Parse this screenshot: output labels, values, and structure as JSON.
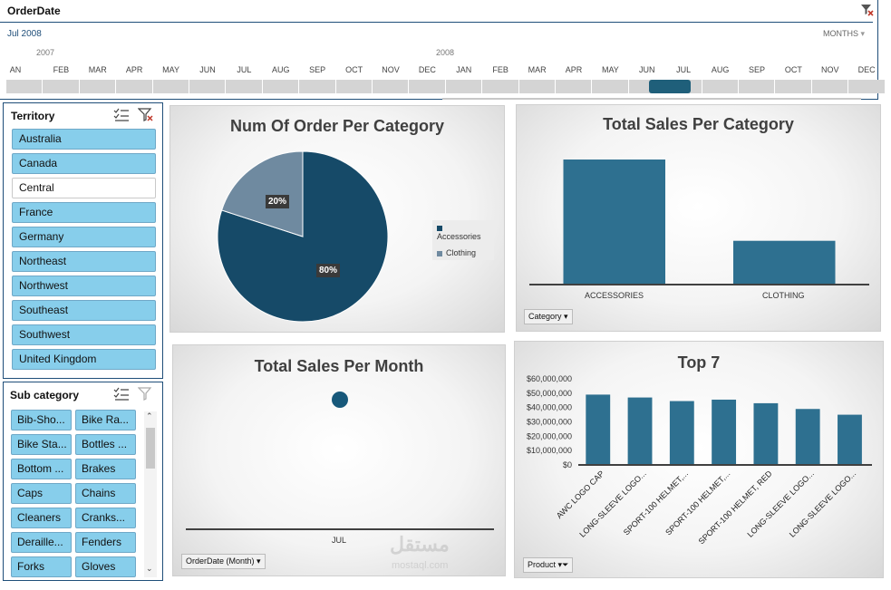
{
  "colors": {
    "accent_dark": "#1a4a68",
    "accent_mid": "#2e6f8f",
    "bar": "#2e7090",
    "slicer_selected": "#87ceeb",
    "pie_clothing": "#6f8aa0",
    "pie_accessories": "#164a68"
  },
  "timeline": {
    "title": "OrderDate",
    "range": "Jul 2008",
    "level": "MONTHS",
    "years": [
      "2007",
      "2008"
    ],
    "months": [
      "AN",
      "FEB",
      "MAR",
      "APR",
      "MAY",
      "JUN",
      "JUL",
      "AUG",
      "SEP",
      "OCT",
      "NOV",
      "DEC",
      "JAN",
      "FEB",
      "MAR",
      "APR",
      "MAY",
      "JUN",
      "JUL",
      "AUG",
      "SEP",
      "OCT",
      "NOV",
      "DEC"
    ],
    "selected_index": 18
  },
  "territory": {
    "title": "Territory",
    "items": [
      {
        "label": "Australia",
        "selected": true
      },
      {
        "label": "Canada",
        "selected": true
      },
      {
        "label": "Central",
        "selected": false
      },
      {
        "label": "France",
        "selected": true
      },
      {
        "label": "Germany",
        "selected": true
      },
      {
        "label": "Northeast",
        "selected": true
      },
      {
        "label": "Northwest",
        "selected": true
      },
      {
        "label": "Southeast",
        "selected": true
      },
      {
        "label": "Southwest",
        "selected": true
      },
      {
        "label": "United Kingdom",
        "selected": true
      }
    ]
  },
  "subcategory": {
    "title": "Sub category",
    "items": [
      "Bib-Sho...",
      "Bike Ra...",
      "Bike Sta...",
      "Bottles ...",
      "Bottom ...",
      "Brakes",
      "Caps",
      "Chains",
      "Cleaners",
      "Cranks...",
      "Deraille...",
      "Fenders",
      "Forks",
      "Gloves"
    ]
  },
  "charts": {
    "pie": {
      "title": "Num Of Order Per Category",
      "legend": [
        "Accessories",
        "Clothing"
      ],
      "labels": [
        "80%",
        "20%"
      ]
    },
    "sales_cat": {
      "title": "Total Sales Per Category",
      "categories": [
        "ACCESSORIES",
        "CLOTHING"
      ],
      "field_button": "Category"
    },
    "sales_month": {
      "title": "Total Sales Per Month",
      "x_label": "JUL",
      "field_button": "OrderDate (Month)"
    },
    "top7": {
      "title": "Top 7",
      "y_ticks": [
        "$60,000,000",
        "$50,000,000",
        "$40,000,000",
        "$30,000,000",
        "$20,000,000",
        "$10,000,000",
        "$0"
      ],
      "products": [
        "AWC LOGO CAP",
        "LONG-SLEEVE LOGO...",
        "SPORT-100 HELMET,...",
        "SPORT-100 HELMET,...",
        "SPORT-100 HELMET, RED",
        "LONG-SLEEVE LOGO...",
        "LONG-SLEEVE LOGO..."
      ],
      "field_button": "Product"
    }
  },
  "chart_data": [
    {
      "type": "pie",
      "title": "Num Of Order Per Category",
      "categories": [
        "Accessories",
        "Clothing"
      ],
      "values": [
        80,
        20
      ],
      "unit": "%",
      "legend": "right"
    },
    {
      "type": "bar",
      "title": "Total Sales Per Category",
      "categories": [
        "ACCESSORIES",
        "CLOTHING"
      ],
      "values": [
        100,
        35
      ],
      "ylim": [
        0,
        100
      ],
      "grid": false
    },
    {
      "type": "scatter",
      "title": "Total Sales Per Month",
      "categories": [
        "JUL"
      ],
      "values": [
        1
      ],
      "grid": false
    },
    {
      "type": "bar",
      "title": "Top 7",
      "categories": [
        "AWC LOGO CAP",
        "LONG-SLEEVE LOGO...",
        "SPORT-100 HELMET,...",
        "SPORT-100 HELMET,...",
        "SPORT-100 HELMET, RED",
        "LONG-SLEEVE LOGO...",
        "LONG-SLEEVE LOGO..."
      ],
      "values": [
        49000000,
        47000000,
        44500000,
        45500000,
        43000000,
        39000000,
        35000000
      ],
      "ylim": [
        0,
        60000000
      ],
      "grid": false
    }
  ]
}
